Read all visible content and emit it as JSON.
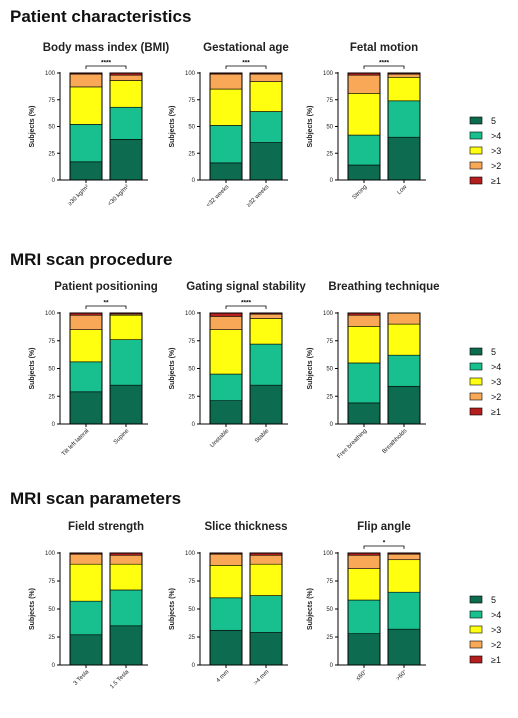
{
  "sections": [
    {
      "title": "Patient characteristics"
    },
    {
      "title": "MRI scan procedure"
    },
    {
      "title": "MRI scan parameters"
    }
  ],
  "legend": {
    "entries": [
      {
        "label": "5",
        "color": "#0d6b4f"
      },
      {
        "label": ">4",
        "color": "#19c08f"
      },
      {
        "label": ">3",
        "color": "#ffff0f"
      },
      {
        "label": ">2",
        "color": "#f9a857"
      },
      {
        "label": "≥1",
        "color": "#b41e1e"
      }
    ]
  },
  "chart_data": [
    {
      "type": "bar",
      "stacked": true,
      "title": "Body mass index (BMI)",
      "ylabel": "Subjects (%)",
      "ylim": [
        0,
        100
      ],
      "yticks": [
        "0",
        "25",
        "50",
        "75",
        "100"
      ],
      "categories": [
        "≥30 kg/m²",
        "<30 kg/m²"
      ],
      "significance": "****",
      "series": [
        {
          "name": "5",
          "values": [
            17,
            38
          ]
        },
        {
          "name": ">4",
          "values": [
            35,
            30
          ]
        },
        {
          "name": ">3",
          "values": [
            35,
            25
          ]
        },
        {
          "name": ">2",
          "values": [
            12,
            5
          ]
        },
        {
          "name": "≥1",
          "values": [
            1,
            2
          ]
        }
      ]
    },
    {
      "type": "bar",
      "stacked": true,
      "title": "Gestational age",
      "ylabel": "Subjects (%)",
      "ylim": [
        0,
        100
      ],
      "yticks": [
        "0",
        "25",
        "50",
        "75",
        "100"
      ],
      "categories": [
        "<32 weeks",
        "≥32 weeks"
      ],
      "significance": "***",
      "series": [
        {
          "name": "5",
          "values": [
            16,
            35
          ]
        },
        {
          "name": ">4",
          "values": [
            35,
            29
          ]
        },
        {
          "name": ">3",
          "values": [
            34,
            28
          ]
        },
        {
          "name": ">2",
          "values": [
            14,
            7
          ]
        },
        {
          "name": "≥1",
          "values": [
            1,
            1
          ]
        }
      ]
    },
    {
      "type": "bar",
      "stacked": true,
      "title": "Fetal motion",
      "ylabel": "Subjects (%)",
      "ylim": [
        0,
        100
      ],
      "yticks": [
        "0",
        "25",
        "50",
        "75",
        "100"
      ],
      "categories": [
        "Strong",
        "Low"
      ],
      "significance": "****",
      "series": [
        {
          "name": "5",
          "values": [
            14,
            40
          ]
        },
        {
          "name": ">4",
          "values": [
            28,
            34
          ]
        },
        {
          "name": ">3",
          "values": [
            39,
            22
          ]
        },
        {
          "name": ">2",
          "values": [
            17,
            3
          ]
        },
        {
          "name": "≥1",
          "values": [
            2,
            1
          ]
        }
      ]
    },
    {
      "type": "bar",
      "stacked": true,
      "title": "Patient positioning",
      "ylabel": "Subjects (%)",
      "ylim": [
        0,
        100
      ],
      "yticks": [
        "0",
        "25",
        "50",
        "75",
        "100"
      ],
      "categories": [
        "Tilt left lateral",
        "Supine"
      ],
      "significance": "**",
      "series": [
        {
          "name": "5",
          "values": [
            29,
            35
          ]
        },
        {
          "name": ">4",
          "values": [
            27,
            41
          ]
        },
        {
          "name": ">3",
          "values": [
            29,
            22
          ]
        },
        {
          "name": ">2",
          "values": [
            13,
            1
          ]
        },
        {
          "name": "≥1",
          "values": [
            2,
            1
          ]
        }
      ]
    },
    {
      "type": "bar",
      "stacked": true,
      "title": "Gating signal stability",
      "ylabel": "Subjects (%)",
      "ylim": [
        0,
        100
      ],
      "yticks": [
        "0",
        "25",
        "50",
        "75",
        "100"
      ],
      "categories": [
        "Unstable",
        "Stable"
      ],
      "significance": "****",
      "series": [
        {
          "name": "5",
          "values": [
            21,
            35
          ]
        },
        {
          "name": ">4",
          "values": [
            24,
            37
          ]
        },
        {
          "name": ">3",
          "values": [
            40,
            23
          ]
        },
        {
          "name": ">2",
          "values": [
            12,
            4
          ]
        },
        {
          "name": "≥1",
          "values": [
            3,
            1
          ]
        }
      ]
    },
    {
      "type": "bar",
      "stacked": true,
      "title": "Breathing technique",
      "ylabel": "Subjects (%)",
      "ylim": [
        0,
        100
      ],
      "yticks": [
        "0",
        "25",
        "50",
        "75",
        "100"
      ],
      "categories": [
        "Free breathing",
        "Breathholds"
      ],
      "significance": "",
      "series": [
        {
          "name": "5",
          "values": [
            19,
            34
          ]
        },
        {
          "name": ">4",
          "values": [
            36,
            28
          ]
        },
        {
          "name": ">3",
          "values": [
            33,
            28
          ]
        },
        {
          "name": ">2",
          "values": [
            10,
            10
          ]
        },
        {
          "name": "≥1",
          "values": [
            2,
            0
          ]
        }
      ]
    },
    {
      "type": "bar",
      "stacked": true,
      "title": "Field strength",
      "ylabel": "Subjects (%)",
      "ylim": [
        0,
        100
      ],
      "yticks": [
        "0",
        "25",
        "50",
        "75",
        "100"
      ],
      "categories": [
        "3 Tesla",
        "1.5 Tesla"
      ],
      "significance": "",
      "series": [
        {
          "name": "5",
          "values": [
            27,
            35
          ]
        },
        {
          "name": ">4",
          "values": [
            30,
            32
          ]
        },
        {
          "name": ">3",
          "values": [
            33,
            23
          ]
        },
        {
          "name": ">2",
          "values": [
            9,
            8
          ]
        },
        {
          "name": "≥1",
          "values": [
            1,
            2
          ]
        }
      ]
    },
    {
      "type": "bar",
      "stacked": true,
      "title": "Slice thickness",
      "ylabel": "Subjects (%)",
      "ylim": [
        0,
        100
      ],
      "yticks": [
        "0",
        "25",
        "50",
        "75",
        "100"
      ],
      "categories": [
        "4 mm",
        ">4 mm"
      ],
      "significance": "",
      "series": [
        {
          "name": "5",
          "values": [
            31,
            29
          ]
        },
        {
          "name": ">4",
          "values": [
            29,
            33
          ]
        },
        {
          "name": ">3",
          "values": [
            29,
            28
          ]
        },
        {
          "name": ">2",
          "values": [
            10,
            8
          ]
        },
        {
          "name": "≥1",
          "values": [
            1,
            2
          ]
        }
      ]
    },
    {
      "type": "bar",
      "stacked": true,
      "title": "Flip angle",
      "ylabel": "Subjects (%)",
      "ylim": [
        0,
        100
      ],
      "yticks": [
        "0",
        "25",
        "50",
        "75",
        "100"
      ],
      "categories": [
        "≤60°",
        ">60°"
      ],
      "significance": "*",
      "series": [
        {
          "name": "5",
          "values": [
            28,
            32
          ]
        },
        {
          "name": ">4",
          "values": [
            30,
            33
          ]
        },
        {
          "name": ">3",
          "values": [
            28,
            29
          ]
        },
        {
          "name": ">2",
          "values": [
            12,
            5
          ]
        },
        {
          "name": "≥1",
          "values": [
            2,
            1
          ]
        }
      ]
    }
  ]
}
